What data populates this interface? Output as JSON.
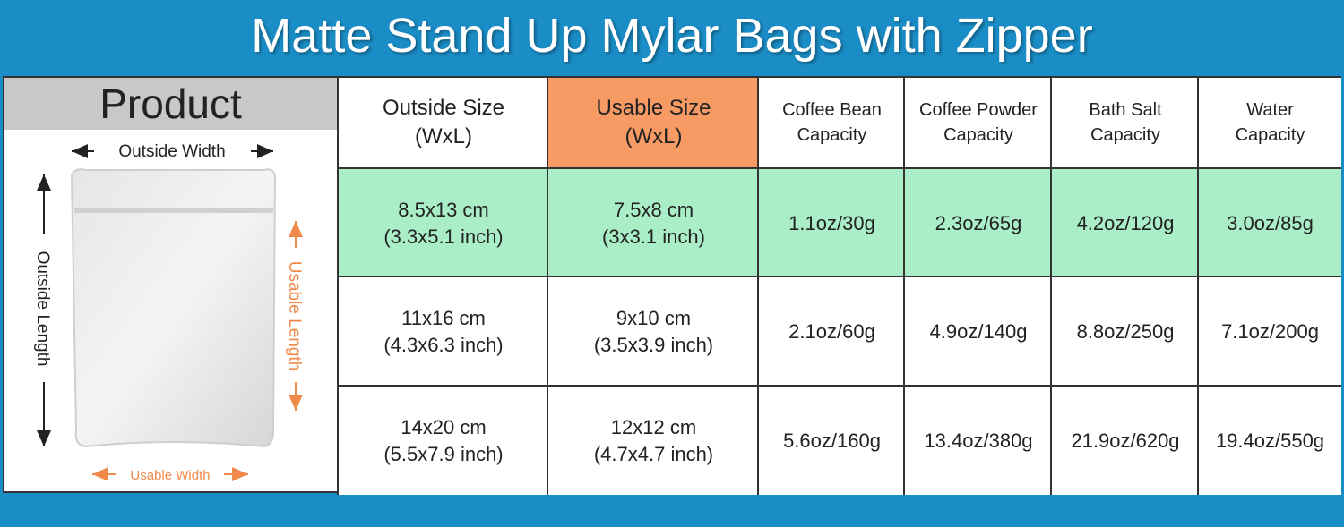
{
  "title": "Matte Stand Up Mylar Bags with Zipper",
  "product": {
    "header": "Product",
    "outside_width": "Outside Width",
    "outside_length": "Outside Length",
    "usable_length": "Usable Length",
    "usable_width": "Usable Width"
  },
  "table": {
    "columns": [
      [
        "Outside Size",
        "(WxL)"
      ],
      [
        "Usable Size",
        "(WxL)"
      ],
      [
        "Coffee Bean",
        "Capacity"
      ],
      [
        "Coffee Powder",
        "Capacity"
      ],
      [
        "Bath Salt",
        "Capacity"
      ],
      [
        "Water",
        "Capacity"
      ]
    ],
    "rows": [
      [
        [
          "8.5x13 cm",
          "(3.3x5.1 inch)"
        ],
        [
          "7.5x8 cm",
          "(3x3.1 inch)"
        ],
        [
          "1.1oz/30g"
        ],
        [
          "2.3oz/65g"
        ],
        [
          "4.2oz/120g"
        ],
        [
          "3.0oz/85g"
        ]
      ],
      [
        [
          "11x16 cm",
          "(4.3x6.3 inch)"
        ],
        [
          "9x10 cm",
          "(3.5x3.9 inch)"
        ],
        [
          "2.1oz/60g"
        ],
        [
          "4.9oz/140g"
        ],
        [
          "8.8oz/250g"
        ],
        [
          "7.1oz/200g"
        ]
      ],
      [
        [
          "14x20 cm",
          "(5.5x7.9 inch)"
        ],
        [
          "12x12 cm",
          "(4.7x4.7 inch)"
        ],
        [
          "5.6oz/160g"
        ],
        [
          "13.4oz/380g"
        ],
        [
          "21.9oz/620g"
        ],
        [
          "19.4oz/550g"
        ]
      ]
    ]
  }
}
